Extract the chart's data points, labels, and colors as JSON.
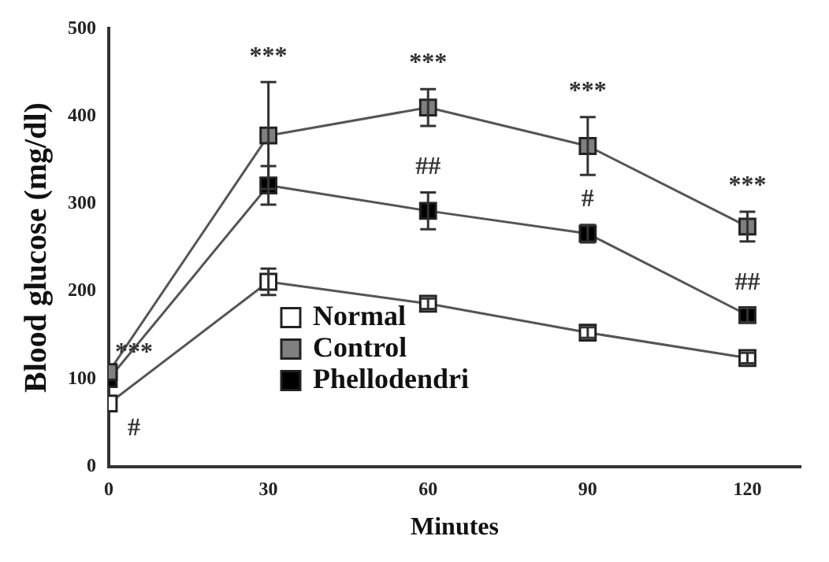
{
  "chart_data": {
    "type": "line",
    "xlabel": "Minutes",
    "ylabel": "Blood glucose (mg/dl)",
    "x": [
      0,
      30,
      60,
      90,
      120
    ],
    "series": [
      {
        "name": "Normal",
        "color": "#ffffff",
        "values": [
          72,
          211,
          186,
          153,
          124
        ],
        "errors": [
          null,
          15,
          6,
          6,
          6
        ]
      },
      {
        "name": "Control",
        "color": "#808080",
        "values": [
          108,
          378,
          410,
          366,
          274
        ],
        "errors": [
          null,
          61,
          21,
          33,
          17
        ]
      },
      {
        "name": "Phellodendri",
        "color": "#000000",
        "values": [
          100,
          321,
          292,
          266,
          173
        ],
        "errors": [
          null,
          22,
          21,
          10,
          8
        ]
      }
    ],
    "xlim": [
      0,
      130
    ],
    "xticks": [
      0,
      30,
      60,
      90,
      120
    ],
    "ylim": [
      0,
      500
    ],
    "yticks": [
      0,
      100,
      200,
      300,
      400,
      500
    ],
    "annotations": [
      {
        "text": "***",
        "x": 0,
        "y": 108
      },
      {
        "text": "#",
        "x": 0,
        "y": 72
      },
      {
        "text": "***",
        "x": 30,
        "y": 378
      },
      {
        "text": "***",
        "x": 60,
        "y": 410
      },
      {
        "text": "***",
        "x": 90,
        "y": 366
      },
      {
        "text": "***",
        "x": 120,
        "y": 274
      },
      {
        "text": "##",
        "x": 60,
        "y": 292
      },
      {
        "text": "#",
        "x": 90,
        "y": 266
      },
      {
        "text": "##",
        "x": 120,
        "y": 173
      }
    ],
    "marker": "square",
    "line_style": "solid",
    "legend": "center",
    "grid": false
  }
}
